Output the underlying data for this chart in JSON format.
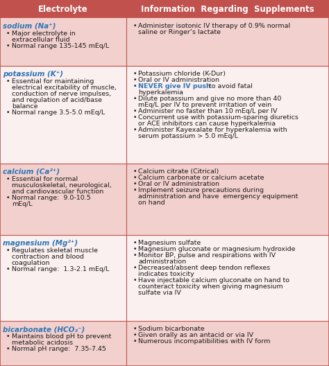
{
  "title_left": "Electrolyte",
  "title_right": "Information  Regarding  Supplements",
  "header_bg": "#c0514d",
  "header_text_color": "#ffffff",
  "electrolyte_color": "#2e75b6",
  "never_color": "#2e75b6",
  "text_color": "#1a1a1a",
  "border_color": "#c0514d",
  "col_div": 0.385,
  "rows": [
    {
      "name": "sodium (Na⁺)",
      "bg": "#f2d0cd",
      "left_lines": [
        {
          "type": "name"
        },
        {
          "type": "bullet",
          "text": "Major electrolyte in"
        },
        {
          "type": "cont",
          "text": "extracellular fluid"
        },
        {
          "type": "bullet",
          "text": "Normal range 135-145 mEq/L"
        }
      ],
      "right_lines": [
        {
          "type": "bullet",
          "text": "Administer isotonic IV therapy of 0.9% normal"
        },
        {
          "type": "cont",
          "text": "saline or Ringer’s lactate"
        }
      ]
    },
    {
      "name": "potassium (K⁺)",
      "bg": "#faf0ef",
      "left_lines": [
        {
          "type": "name"
        },
        {
          "type": "bullet",
          "text": "Essential for maintaining"
        },
        {
          "type": "cont",
          "text": "electrical excitability of muscle,"
        },
        {
          "type": "cont",
          "text": "conduction of nerve impulses,"
        },
        {
          "type": "cont",
          "text": "and regulation of acid/base"
        },
        {
          "type": "cont",
          "text": "balance"
        },
        {
          "type": "bullet",
          "text": "Normal range 3.5-5.0 mEq/L"
        }
      ],
      "right_lines": [
        {
          "type": "bullet",
          "text": "Potassium chloride (K-Dur)"
        },
        {
          "type": "bullet",
          "text": "Oral or IV administration"
        },
        {
          "type": "bullet_never",
          "text1": "NEVER give IV push",
          "text2": " to avoid fatal"
        },
        {
          "type": "cont",
          "text": "hyperkalemia"
        },
        {
          "type": "bullet",
          "text": "Dilute potassium and give no more than 40"
        },
        {
          "type": "cont",
          "text": "mEq/L per IV to prevent irritation of vein"
        },
        {
          "type": "bullet",
          "text": "Administer no faster than 10 mEq/L per IV"
        },
        {
          "type": "bullet",
          "text": "Concurrent use with potassium-sparing diuretics"
        },
        {
          "type": "cont",
          "text": "or ACE inhibitors can cause hyperkalemia"
        },
        {
          "type": "bullet",
          "text": "Administer Kayexalate for hyperkalemia with"
        },
        {
          "type": "cont",
          "text": "serum potassium > 5.0 mEq/L"
        }
      ]
    },
    {
      "name": "calcium (Ca²⁺)",
      "bg": "#f2d0cd",
      "left_lines": [
        {
          "type": "name"
        },
        {
          "type": "bullet",
          "text": "Essential for normal"
        },
        {
          "type": "cont",
          "text": "musculoskeletal, neurological,"
        },
        {
          "type": "cont",
          "text": "and cardiovascular function"
        },
        {
          "type": "bullet",
          "text": "Normal range:  9.0-10.5"
        },
        {
          "type": "cont",
          "text": "mEq/L"
        }
      ],
      "right_lines": [
        {
          "type": "bullet",
          "text": "Calcium citrate (Citrical)"
        },
        {
          "type": "bullet",
          "text": "Calcium carbonate or calcium acetate"
        },
        {
          "type": "bullet",
          "text": "Oral or IV administration"
        },
        {
          "type": "bullet",
          "text": "Implement seizure precautions during"
        },
        {
          "type": "cont",
          "text": "administration and have  emergency equipment"
        },
        {
          "type": "cont",
          "text": "on hand"
        }
      ]
    },
    {
      "name": "magnesium (Mg²⁺)",
      "bg": "#faf0ef",
      "left_lines": [
        {
          "type": "name"
        },
        {
          "type": "bullet",
          "text": "Regulates skeletal muscle"
        },
        {
          "type": "cont",
          "text": "contraction and blood"
        },
        {
          "type": "cont",
          "text": "coagulation"
        },
        {
          "type": "bullet",
          "text": "Normal range:  1.3-2.1 mEq/L"
        }
      ],
      "right_lines": [
        {
          "type": "bullet",
          "text": "Magnesium sulfate"
        },
        {
          "type": "bullet",
          "text": "Magnesium gluconate or magnesium hydroxide"
        },
        {
          "type": "bullet",
          "text": "Monitor BP, pulse and respirations with IV"
        },
        {
          "type": "cont",
          "text": "administration"
        },
        {
          "type": "bullet",
          "text": "Decreased/absent deep tendon reflexes"
        },
        {
          "type": "cont",
          "text": "indicates toxicity"
        },
        {
          "type": "bullet",
          "text": "Have injectable calcium gluconate on hand to"
        },
        {
          "type": "cont",
          "text": "counteract toxicity when giving magnesium"
        },
        {
          "type": "cont",
          "text": "sulfate via IV"
        }
      ]
    },
    {
      "name": "bicarbonate (HCO₃⁻)",
      "bg": "#f2d0cd",
      "left_lines": [
        {
          "type": "name"
        },
        {
          "type": "bullet",
          "text": "Maintains blood pH to prevent"
        },
        {
          "type": "cont",
          "text": "metabolic acidosis"
        },
        {
          "type": "bullet",
          "text": "Normal pH range:  7.35-7.45"
        }
      ],
      "right_lines": [
        {
          "type": "bullet",
          "text": "Sodium bicarbonate"
        },
        {
          "type": "bullet",
          "text": "Given orally as an antacid or via IV"
        },
        {
          "type": "bullet",
          "text": "Numerous incompatibilities with IV form"
        }
      ]
    }
  ]
}
